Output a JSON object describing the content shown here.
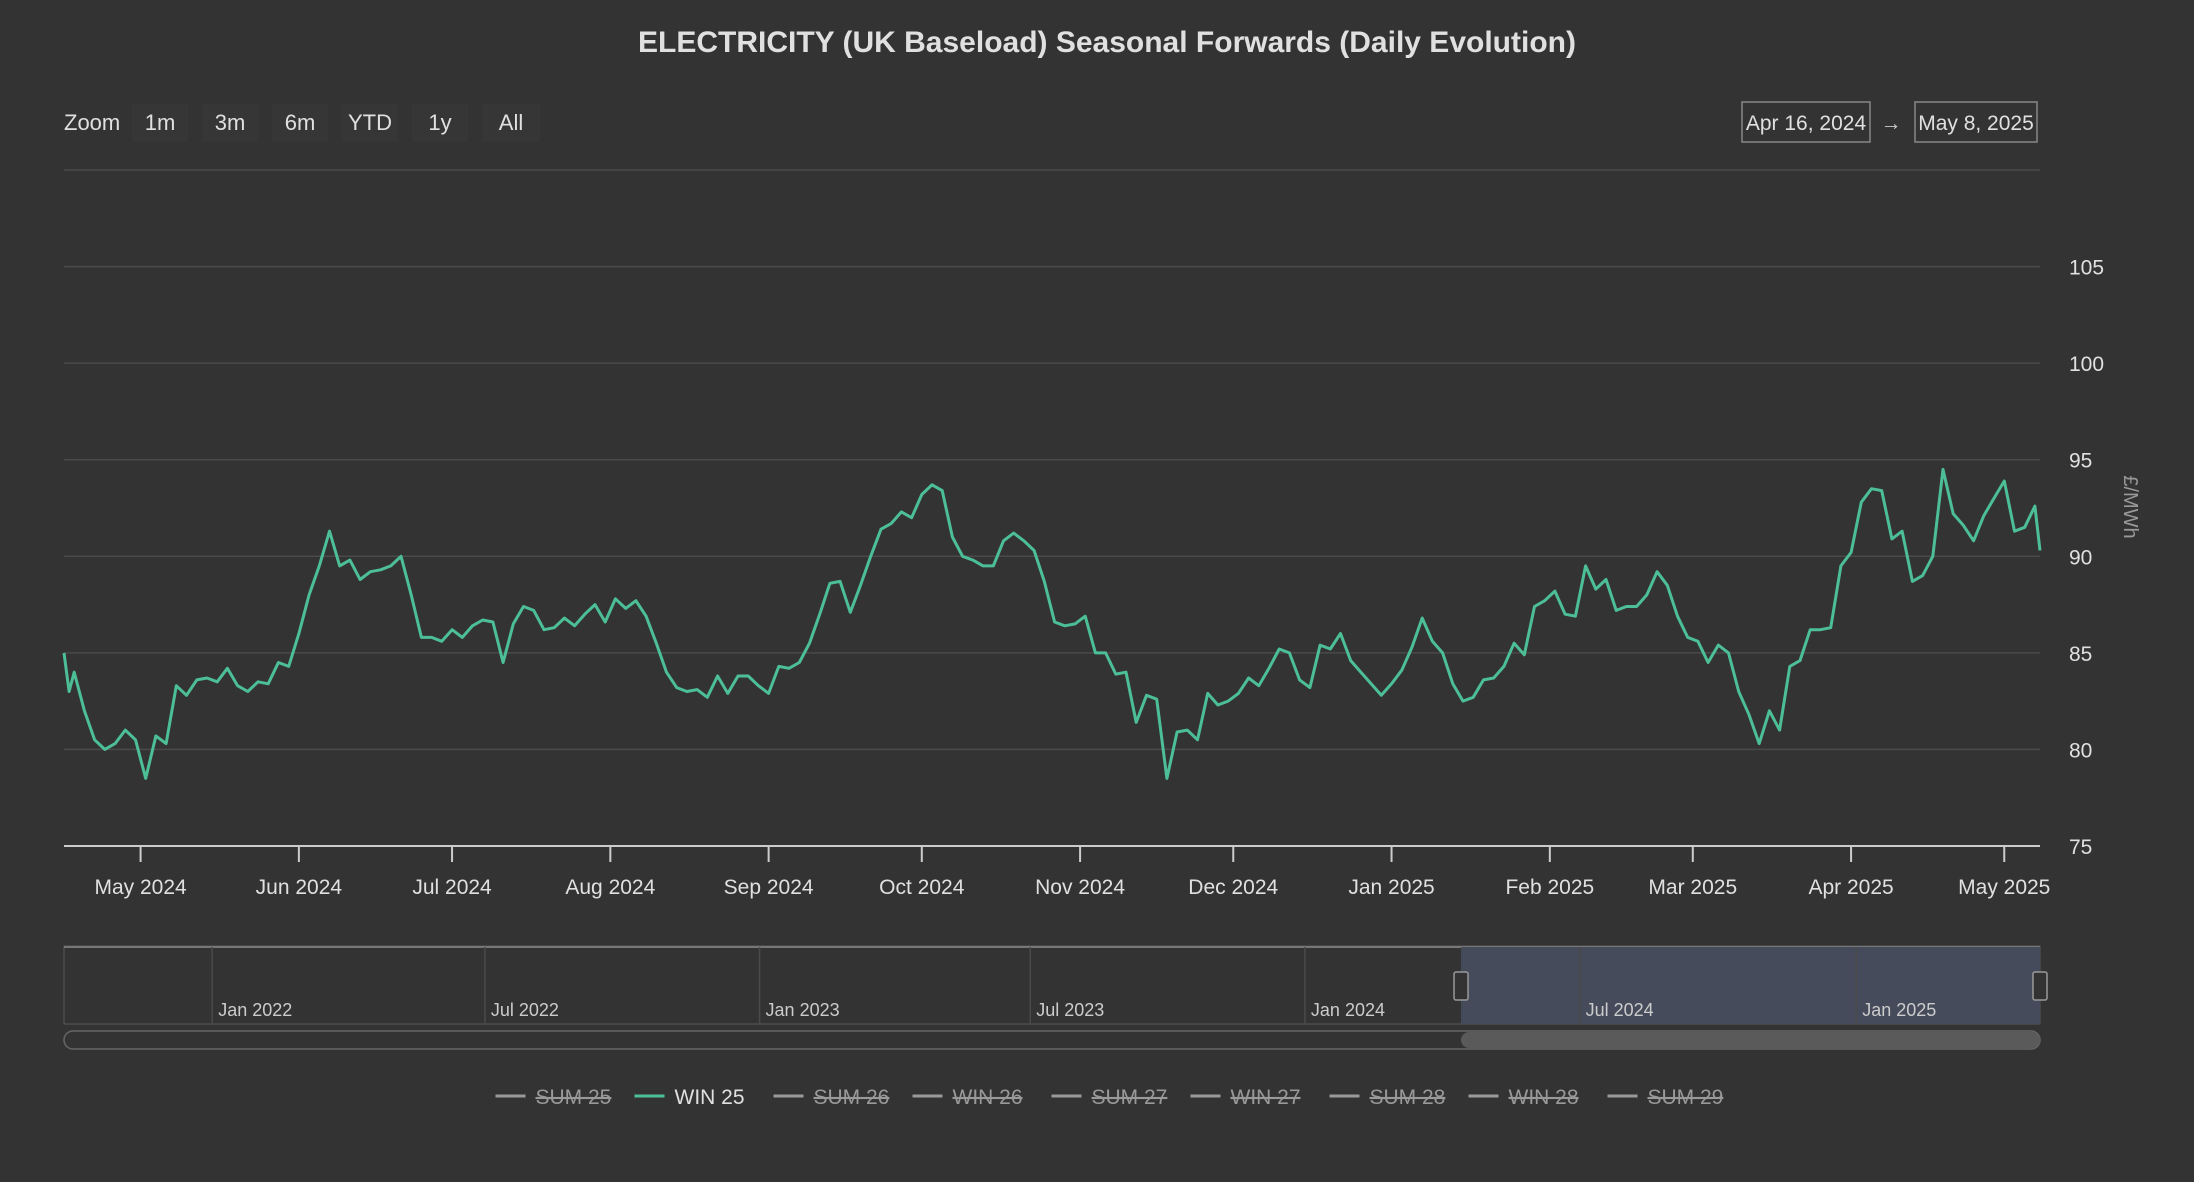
{
  "chart_data": {
    "type": "line",
    "title": "ELECTRICITY (UK Baseload) Seasonal Forwards (Daily Evolution)",
    "ylabel": "£/MWh",
    "xlabel": "",
    "ylim": [
      75,
      110
    ],
    "yticks": [
      75,
      80,
      85,
      90,
      95,
      100,
      105
    ],
    "xlim": [
      "2024-04-16",
      "2025-05-08"
    ],
    "x_ticks": [
      {
        "date": "2024-05-01",
        "label": "May 2024"
      },
      {
        "date": "2024-06-01",
        "label": "Jun 2024"
      },
      {
        "date": "2024-07-01",
        "label": "Jul 2024"
      },
      {
        "date": "2024-08-01",
        "label": "Aug 2024"
      },
      {
        "date": "2024-09-01",
        "label": "Sep 2024"
      },
      {
        "date": "2024-10-01",
        "label": "Oct 2024"
      },
      {
        "date": "2024-11-01",
        "label": "Nov 2024"
      },
      {
        "date": "2024-12-01",
        "label": "Dec 2024"
      },
      {
        "date": "2025-01-01",
        "label": "Jan 2025"
      },
      {
        "date": "2025-02-01",
        "label": "Feb 2025"
      },
      {
        "date": "2025-03-01",
        "label": "Mar 2025"
      },
      {
        "date": "2025-04-01",
        "label": "Apr 2025"
      },
      {
        "date": "2025-05-01",
        "label": "May 2025"
      }
    ],
    "grid": true,
    "legend_position": "bottom-center",
    "series": [
      {
        "name": "WIN 25",
        "color": "#4cbf97",
        "visible": true,
        "points": [
          [
            "2024-04-16",
            85.0
          ],
          [
            "2024-04-17",
            83.0
          ],
          [
            "2024-04-18",
            84.0
          ],
          [
            "2024-04-20",
            82.0
          ],
          [
            "2024-04-22",
            80.5
          ],
          [
            "2024-04-24",
            80.0
          ],
          [
            "2024-04-26",
            80.3
          ],
          [
            "2024-04-28",
            81.0
          ],
          [
            "2024-04-30",
            80.5
          ],
          [
            "2024-05-02",
            78.5
          ],
          [
            "2024-05-04",
            80.7
          ],
          [
            "2024-05-06",
            80.3
          ],
          [
            "2024-05-08",
            83.3
          ],
          [
            "2024-05-10",
            82.8
          ],
          [
            "2024-05-12",
            83.6
          ],
          [
            "2024-05-14",
            83.7
          ],
          [
            "2024-05-16",
            83.5
          ],
          [
            "2024-05-18",
            84.2
          ],
          [
            "2024-05-20",
            83.3
          ],
          [
            "2024-05-22",
            83.0
          ],
          [
            "2024-05-24",
            83.5
          ],
          [
            "2024-05-26",
            83.4
          ],
          [
            "2024-05-28",
            84.5
          ],
          [
            "2024-05-30",
            84.3
          ],
          [
            "2024-06-01",
            86.0
          ],
          [
            "2024-06-03",
            88.0
          ],
          [
            "2024-06-05",
            89.5
          ],
          [
            "2024-06-07",
            91.3
          ],
          [
            "2024-06-09",
            89.5
          ],
          [
            "2024-06-11",
            89.8
          ],
          [
            "2024-06-13",
            88.8
          ],
          [
            "2024-06-15",
            89.2
          ],
          [
            "2024-06-17",
            89.3
          ],
          [
            "2024-06-19",
            89.5
          ],
          [
            "2024-06-21",
            90.0
          ],
          [
            "2024-06-23",
            88.0
          ],
          [
            "2024-06-25",
            85.8
          ],
          [
            "2024-06-27",
            85.8
          ],
          [
            "2024-06-29",
            85.6
          ],
          [
            "2024-07-01",
            86.2
          ],
          [
            "2024-07-03",
            85.8
          ],
          [
            "2024-07-05",
            86.4
          ],
          [
            "2024-07-07",
            86.7
          ],
          [
            "2024-07-09",
            86.6
          ],
          [
            "2024-07-11",
            84.5
          ],
          [
            "2024-07-13",
            86.5
          ],
          [
            "2024-07-15",
            87.4
          ],
          [
            "2024-07-17",
            87.2
          ],
          [
            "2024-07-19",
            86.2
          ],
          [
            "2024-07-21",
            86.3
          ],
          [
            "2024-07-23",
            86.8
          ],
          [
            "2024-07-25",
            86.4
          ],
          [
            "2024-07-27",
            87.0
          ],
          [
            "2024-07-29",
            87.5
          ],
          [
            "2024-07-31",
            86.6
          ],
          [
            "2024-08-02",
            87.8
          ],
          [
            "2024-08-04",
            87.3
          ],
          [
            "2024-08-06",
            87.7
          ],
          [
            "2024-08-08",
            86.9
          ],
          [
            "2024-08-10",
            85.5
          ],
          [
            "2024-08-12",
            84.0
          ],
          [
            "2024-08-14",
            83.2
          ],
          [
            "2024-08-16",
            83.0
          ],
          [
            "2024-08-18",
            83.1
          ],
          [
            "2024-08-20",
            82.7
          ],
          [
            "2024-08-22",
            83.8
          ],
          [
            "2024-08-24",
            82.9
          ],
          [
            "2024-08-26",
            83.8
          ],
          [
            "2024-08-28",
            83.8
          ],
          [
            "2024-08-30",
            83.3
          ],
          [
            "2024-09-01",
            82.9
          ],
          [
            "2024-09-03",
            84.3
          ],
          [
            "2024-09-05",
            84.2
          ],
          [
            "2024-09-07",
            84.5
          ],
          [
            "2024-09-09",
            85.5
          ],
          [
            "2024-09-11",
            87.0
          ],
          [
            "2024-09-13",
            88.6
          ],
          [
            "2024-09-15",
            88.7
          ],
          [
            "2024-09-17",
            87.1
          ],
          [
            "2024-09-19",
            88.5
          ],
          [
            "2024-09-21",
            90.0
          ],
          [
            "2024-09-23",
            91.4
          ],
          [
            "2024-09-25",
            91.7
          ],
          [
            "2024-09-27",
            92.3
          ],
          [
            "2024-09-29",
            92.0
          ],
          [
            "2024-10-01",
            93.2
          ],
          [
            "2024-10-03",
            93.7
          ],
          [
            "2024-10-05",
            93.4
          ],
          [
            "2024-10-07",
            91.0
          ],
          [
            "2024-10-09",
            90.0
          ],
          [
            "2024-10-11",
            89.8
          ],
          [
            "2024-10-13",
            89.5
          ],
          [
            "2024-10-15",
            89.5
          ],
          [
            "2024-10-17",
            90.8
          ],
          [
            "2024-10-19",
            91.2
          ],
          [
            "2024-10-21",
            90.8
          ],
          [
            "2024-10-23",
            90.3
          ],
          [
            "2024-10-25",
            88.7
          ],
          [
            "2024-10-27",
            86.6
          ],
          [
            "2024-10-29",
            86.4
          ],
          [
            "2024-10-31",
            86.5
          ],
          [
            "2024-11-02",
            86.9
          ],
          [
            "2024-11-04",
            85.0
          ],
          [
            "2024-11-06",
            85.0
          ],
          [
            "2024-11-08",
            83.9
          ],
          [
            "2024-11-10",
            84.0
          ],
          [
            "2024-11-12",
            81.4
          ],
          [
            "2024-11-14",
            82.8
          ],
          [
            "2024-11-16",
            82.6
          ],
          [
            "2024-11-18",
            78.5
          ],
          [
            "2024-11-20",
            80.9
          ],
          [
            "2024-11-22",
            81.0
          ],
          [
            "2024-11-24",
            80.5
          ],
          [
            "2024-11-26",
            82.9
          ],
          [
            "2024-11-28",
            82.3
          ],
          [
            "2024-11-30",
            82.5
          ],
          [
            "2024-12-02",
            82.9
          ],
          [
            "2024-12-04",
            83.7
          ],
          [
            "2024-12-06",
            83.3
          ],
          [
            "2024-12-08",
            84.2
          ],
          [
            "2024-12-10",
            85.2
          ],
          [
            "2024-12-12",
            85.0
          ],
          [
            "2024-12-14",
            83.6
          ],
          [
            "2024-12-16",
            83.2
          ],
          [
            "2024-12-18",
            85.4
          ],
          [
            "2024-12-20",
            85.2
          ],
          [
            "2024-12-22",
            86.0
          ],
          [
            "2024-12-24",
            84.6
          ],
          [
            "2024-12-26",
            84.0
          ],
          [
            "2024-12-28",
            83.4
          ],
          [
            "2024-12-30",
            82.8
          ],
          [
            "2025-01-01",
            83.4
          ],
          [
            "2025-01-03",
            84.1
          ],
          [
            "2025-01-05",
            85.3
          ],
          [
            "2025-01-07",
            86.8
          ],
          [
            "2025-01-09",
            85.6
          ],
          [
            "2025-01-11",
            85.0
          ],
          [
            "2025-01-13",
            83.4
          ],
          [
            "2025-01-15",
            82.5
          ],
          [
            "2025-01-17",
            82.7
          ],
          [
            "2025-01-19",
            83.6
          ],
          [
            "2025-01-21",
            83.7
          ],
          [
            "2025-01-23",
            84.3
          ],
          [
            "2025-01-25",
            85.5
          ],
          [
            "2025-01-27",
            84.9
          ],
          [
            "2025-01-29",
            87.4
          ],
          [
            "2025-01-31",
            87.7
          ],
          [
            "2025-02-02",
            88.2
          ],
          [
            "2025-02-04",
            87.0
          ],
          [
            "2025-02-06",
            86.9
          ],
          [
            "2025-02-08",
            89.5
          ],
          [
            "2025-02-10",
            88.3
          ],
          [
            "2025-02-12",
            88.8
          ],
          [
            "2025-02-14",
            87.2
          ],
          [
            "2025-02-16",
            87.4
          ],
          [
            "2025-02-18",
            87.4
          ],
          [
            "2025-02-20",
            88.0
          ],
          [
            "2025-02-22",
            89.2
          ],
          [
            "2025-02-24",
            88.5
          ],
          [
            "2025-02-26",
            86.9
          ],
          [
            "2025-02-28",
            85.8
          ],
          [
            "2025-03-02",
            85.6
          ],
          [
            "2025-03-04",
            84.5
          ],
          [
            "2025-03-06",
            85.4
          ],
          [
            "2025-03-08",
            85.0
          ],
          [
            "2025-03-10",
            83.0
          ],
          [
            "2025-03-12",
            81.8
          ],
          [
            "2025-03-14",
            80.3
          ],
          [
            "2025-03-16",
            82.0
          ],
          [
            "2025-03-18",
            81.0
          ],
          [
            "2025-03-20",
            84.3
          ],
          [
            "2025-03-22",
            84.6
          ],
          [
            "2025-03-24",
            86.2
          ],
          [
            "2025-03-26",
            86.2
          ],
          [
            "2025-03-28",
            86.3
          ],
          [
            "2025-03-30",
            89.5
          ],
          [
            "2025-04-01",
            90.2
          ],
          [
            "2025-04-03",
            92.8
          ],
          [
            "2025-04-05",
            93.5
          ],
          [
            "2025-04-07",
            93.4
          ],
          [
            "2025-04-09",
            90.9
          ],
          [
            "2025-04-11",
            91.3
          ],
          [
            "2025-04-13",
            88.7
          ],
          [
            "2025-04-15",
            89.0
          ],
          [
            "2025-04-17",
            90.0
          ],
          [
            "2025-04-19",
            94.5
          ],
          [
            "2025-04-21",
            92.2
          ],
          [
            "2025-04-23",
            91.6
          ],
          [
            "2025-04-25",
            90.8
          ],
          [
            "2025-04-27",
            92.1
          ],
          [
            "2025-04-29",
            93.0
          ],
          [
            "2025-05-01",
            93.9
          ],
          [
            "2025-05-03",
            91.3
          ],
          [
            "2025-05-05",
            91.5
          ],
          [
            "2025-05-07",
            92.6
          ],
          [
            "2025-05-08",
            90.3
          ]
        ]
      }
    ]
  },
  "title": "ELECTRICITY (UK Baseload) Seasonal Forwards (Daily Evolution)",
  "zoom": {
    "label": "Zoom",
    "buttons": [
      "1m",
      "3m",
      "6m",
      "YTD",
      "1y",
      "All"
    ]
  },
  "range": {
    "from": "Apr 16, 2024",
    "arrow": "→",
    "to": "May 8, 2025"
  },
  "navigator": {
    "labels": [
      "Jan 2022",
      "Jul 2022",
      "Jan 2023",
      "Jul 2023",
      "Jan 2024",
      "Jul 2024",
      "Jan 2025"
    ],
    "selected_fraction": [
      0.707,
      1.0
    ]
  },
  "legend": [
    {
      "name": "SUM 25",
      "visible": false
    },
    {
      "name": "WIN 25",
      "visible": true
    },
    {
      "name": "SUM 26",
      "visible": false
    },
    {
      "name": "WIN 26",
      "visible": false
    },
    {
      "name": "SUM 27",
      "visible": false
    },
    {
      "name": "WIN 27",
      "visible": false
    },
    {
      "name": "SUM 28",
      "visible": false
    },
    {
      "name": "WIN 28",
      "visible": false
    },
    {
      "name": "SUM 29",
      "visible": false
    }
  ],
  "colors": {
    "background": "#333333",
    "series": "#4cbf97",
    "grid": "#4a4a4a",
    "text": "#e0e0e0",
    "muted": "#999999",
    "navigator_mask": "#454b5a"
  }
}
